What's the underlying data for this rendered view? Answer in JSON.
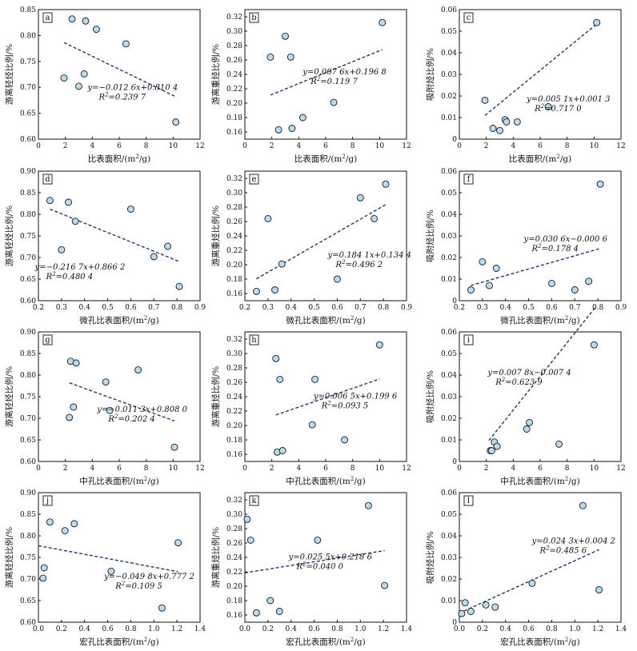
{
  "chart_data": [
    {
      "id": "a",
      "type": "scatter",
      "letter": "a",
      "xlabel": "比表面积/(m²/g)",
      "ylabel": "游离轻烃比例/%",
      "xlim": [
        0,
        12
      ],
      "ylim": [
        0.6,
        0.85
      ],
      "xticks": [
        0,
        2,
        4,
        6,
        8,
        10,
        12
      ],
      "yticks": [
        0.6,
        0.65,
        0.7,
        0.75,
        0.8,
        0.85
      ],
      "xdec": 0,
      "ydec": 2,
      "points": [
        [
          1.9,
          0.718
        ],
        [
          2.5,
          0.832
        ],
        [
          3.0,
          0.702
        ],
        [
          3.4,
          0.726
        ],
        [
          3.5,
          0.828
        ],
        [
          4.3,
          0.812
        ],
        [
          6.5,
          0.784
        ],
        [
          10.2,
          0.633
        ]
      ],
      "trend": {
        "slope": -0.0126,
        "intercept": 0.8104,
        "x0": 1.9,
        "x1": 10.2
      },
      "equation": "y=−0.012 6x+0.810 4",
      "r2": "R²=0.239 7",
      "eq_pos": [
        7.0,
        0.695
      ]
    },
    {
      "id": "b",
      "type": "scatter",
      "letter": "b",
      "xlabel": "比表面积/(m²/g)",
      "ylabel": "游离重烃比例/%",
      "xlim": [
        0,
        12
      ],
      "ylim": [
        0.15,
        0.33
      ],
      "xticks": [
        0,
        2,
        4,
        6,
        8,
        10,
        12
      ],
      "yticks": [
        0.16,
        0.18,
        0.2,
        0.22,
        0.24,
        0.26,
        0.28,
        0.3,
        0.32
      ],
      "xdec": 0,
      "ydec": 2,
      "points": [
        [
          1.9,
          0.264
        ],
        [
          2.5,
          0.163
        ],
        [
          3.0,
          0.293
        ],
        [
          3.4,
          0.264
        ],
        [
          3.5,
          0.165
        ],
        [
          4.3,
          0.18
        ],
        [
          6.6,
          0.201
        ],
        [
          10.2,
          0.312
        ]
      ],
      "trend": {
        "slope": 0.0076,
        "intercept": 0.1968,
        "x0": 1.9,
        "x1": 10.2
      },
      "equation": "y=0.007 6x+0.196 8",
      "r2": "R²=0.119 7",
      "eq_pos": [
        7.4,
        0.24
      ]
    },
    {
      "id": "c",
      "type": "scatter",
      "letter": "c",
      "xlabel": "比表面积/(m²/g)",
      "ylabel": "吸附烃比例/%",
      "xlim": [
        0,
        12
      ],
      "ylim": [
        0,
        0.06
      ],
      "xticks": [
        0,
        2,
        4,
        6,
        8,
        10,
        12
      ],
      "yticks": [
        0,
        0.01,
        0.02,
        0.03,
        0.04,
        0.05,
        0.06
      ],
      "xdec": 0,
      "ydec": 2,
      "points": [
        [
          1.9,
          0.018
        ],
        [
          2.5,
          0.005
        ],
        [
          3.0,
          0.004
        ],
        [
          3.4,
          0.009
        ],
        [
          3.5,
          0.008
        ],
        [
          4.3,
          0.008
        ],
        [
          6.6,
          0.015
        ],
        [
          10.2,
          0.054
        ]
      ],
      "trend": {
        "slope": 0.0051,
        "intercept": 0.0013,
        "x0": 1.9,
        "x1": 10.2
      },
      "equation": "y=0.005 1x+0.001 3",
      "r2": "R²=0.717 0",
      "eq_pos": [
        8.1,
        0.0175
      ]
    },
    {
      "id": "d",
      "type": "scatter",
      "letter": "d",
      "xlabel": "微孔比表面积/(m²/g)",
      "ylabel": "游离轻烃比例/%",
      "xlim": [
        0.2,
        0.9
      ],
      "ylim": [
        0.6,
        0.9
      ],
      "xticks": [
        0.2,
        0.3,
        0.4,
        0.5,
        0.6,
        0.7,
        0.8,
        0.9
      ],
      "yticks": [
        0.6,
        0.65,
        0.7,
        0.75,
        0.8,
        0.85,
        0.9
      ],
      "xdec": 1,
      "ydec": 2,
      "points": [
        [
          0.25,
          0.832
        ],
        [
          0.3,
          0.718
        ],
        [
          0.33,
          0.828
        ],
        [
          0.36,
          0.784
        ],
        [
          0.6,
          0.812
        ],
        [
          0.7,
          0.702
        ],
        [
          0.76,
          0.726
        ],
        [
          0.81,
          0.633
        ]
      ],
      "trend": {
        "slope": -0.2167,
        "intercept": 0.8662,
        "x0": 0.25,
        "x1": 0.81
      },
      "equation": "y=−0.216 7x+0.866 2",
      "r2": "R²=0.480 4",
      "eq_pos": [
        0.38,
        0.672
      ]
    },
    {
      "id": "e",
      "type": "scatter",
      "letter": "e",
      "xlabel": "微孔比表面积/(m²/g)",
      "ylabel": "游离重烃比例/%",
      "xlim": [
        0.2,
        0.9
      ],
      "ylim": [
        0.15,
        0.33
      ],
      "xticks": [
        0.2,
        0.3,
        0.4,
        0.5,
        0.6,
        0.7,
        0.8,
        0.9
      ],
      "yticks": [
        0.16,
        0.18,
        0.2,
        0.22,
        0.24,
        0.26,
        0.28,
        0.3,
        0.32
      ],
      "xdec": 1,
      "ydec": 2,
      "points": [
        [
          0.25,
          0.163
        ],
        [
          0.3,
          0.264
        ],
        [
          0.33,
          0.165
        ],
        [
          0.36,
          0.201
        ],
        [
          0.6,
          0.18
        ],
        [
          0.7,
          0.293
        ],
        [
          0.76,
          0.264
        ],
        [
          0.81,
          0.312
        ]
      ],
      "trend": {
        "slope": 0.1841,
        "intercept": 0.1344,
        "x0": 0.25,
        "x1": 0.81
      },
      "equation": "y=0.184 1x+0.134 4",
      "r2": "R²=0.496 2",
      "eq_pos": [
        0.74,
        0.21
      ]
    },
    {
      "id": "f",
      "type": "scatter",
      "letter": "f",
      "xlabel": "微孔比表面积/(m²/g)",
      "ylabel": "吸附烃比例/%",
      "xlim": [
        0.2,
        0.9
      ],
      "ylim": [
        0,
        0.06
      ],
      "xticks": [
        0.2,
        0.3,
        0.4,
        0.5,
        0.6,
        0.7,
        0.8,
        0.9
      ],
      "yticks": [
        0,
        0.01,
        0.02,
        0.03,
        0.04,
        0.05,
        0.06
      ],
      "xdec": 1,
      "ydec": 2,
      "points": [
        [
          0.25,
          0.005
        ],
        [
          0.3,
          0.018
        ],
        [
          0.33,
          0.007
        ],
        [
          0.36,
          0.015
        ],
        [
          0.6,
          0.008
        ],
        [
          0.7,
          0.005
        ],
        [
          0.76,
          0.009
        ],
        [
          0.81,
          0.054
        ]
      ],
      "trend": {
        "slope": 0.0306,
        "intercept": -0.0006,
        "x0": 0.25,
        "x1": 0.81
      },
      "equation": "y=0.030 6x−0.000 6",
      "r2": "R²=0.178 4",
      "eq_pos": [
        0.66,
        0.0275
      ]
    },
    {
      "id": "g",
      "type": "scatter",
      "letter": "g",
      "xlabel": "中孔比表面积/(m²/g)",
      "ylabel": "游离轻烃比例/%",
      "xlim": [
        0,
        12
      ],
      "ylim": [
        0.6,
        0.9
      ],
      "xticks": [
        0,
        2,
        4,
        6,
        8,
        10,
        12
      ],
      "yticks": [
        0.6,
        0.65,
        0.7,
        0.75,
        0.8,
        0.85,
        0.9
      ],
      "xdec": 0,
      "ydec": 2,
      "points": [
        [
          2.3,
          0.702
        ],
        [
          2.4,
          0.832
        ],
        [
          2.6,
          0.726
        ],
        [
          2.8,
          0.828
        ],
        [
          5.0,
          0.784
        ],
        [
          5.3,
          0.718
        ],
        [
          7.4,
          0.812
        ],
        [
          10.1,
          0.633
        ]
      ],
      "trend": {
        "slope": -0.0113,
        "intercept": 0.808,
        "x0": 2.3,
        "x1": 10.1
      },
      "equation": "y=−0.011 3x+0.808 0",
      "r2": "R²=0.202 4",
      "eq_pos": [
        7.7,
        0.715
      ]
    },
    {
      "id": "h",
      "type": "scatter",
      "letter": "h",
      "xlabel": "中孔比表面积/(m²/g)",
      "ylabel": "游离重烃比例/%",
      "xlim": [
        0,
        12
      ],
      "ylim": [
        0.15,
        0.33
      ],
      "xticks": [
        0,
        2,
        4,
        6,
        8,
        10,
        12
      ],
      "yticks": [
        0.16,
        0.18,
        0.2,
        0.22,
        0.24,
        0.26,
        0.28,
        0.3,
        0.32
      ],
      "xdec": 0,
      "ydec": 2,
      "points": [
        [
          2.3,
          0.293
        ],
        [
          2.4,
          0.163
        ],
        [
          2.6,
          0.264
        ],
        [
          2.8,
          0.165
        ],
        [
          5.0,
          0.201
        ],
        [
          5.2,
          0.264
        ],
        [
          7.4,
          0.18
        ],
        [
          10.0,
          0.312
        ]
      ],
      "trend": {
        "slope": 0.0065,
        "intercept": 0.1996,
        "x0": 2.3,
        "x1": 10.0
      },
      "equation": "y=0.006 5x+0.199 6",
      "r2": "R²=0.093 5",
      "eq_pos": [
        8.2,
        0.237
      ]
    },
    {
      "id": "i",
      "type": "scatter",
      "letter": "i",
      "xlabel": "中孔比表面积/(m²/g)",
      "ylabel": "吸附烃比例/%",
      "xlim": [
        0,
        12
      ],
      "ylim": [
        0,
        0.06
      ],
      "xticks": [
        0,
        2,
        4,
        6,
        8,
        10,
        12
      ],
      "yticks": [
        0,
        0.01,
        0.02,
        0.03,
        0.04,
        0.05,
        0.06
      ],
      "xdec": 0,
      "ydec": 2,
      "points": [
        [
          2.3,
          0.005
        ],
        [
          2.4,
          0.005
        ],
        [
          2.6,
          0.009
        ],
        [
          2.8,
          0.007
        ],
        [
          5.0,
          0.015
        ],
        [
          5.2,
          0.018
        ],
        [
          7.4,
          0.008
        ],
        [
          10.0,
          0.054
        ]
      ],
      "trend": {
        "slope": 0.0078,
        "intercept": -0.0074,
        "x0": 2.2,
        "x1": 10.1
      },
      "equation": "y=0.007 8x−0.007 4",
      "r2": "R²=0.623 9",
      "eq_pos": [
        5.2,
        0.04
      ]
    },
    {
      "id": "j",
      "type": "scatter",
      "letter": "j",
      "xlabel": "宏孔比表面积/(m²/g)",
      "ylabel": "游离轻烃比例/%",
      "xlim": [
        0,
        1.4
      ],
      "ylim": [
        0.6,
        0.9
      ],
      "xticks": [
        0,
        0.2,
        0.4,
        0.6,
        0.8,
        1.0,
        1.2,
        1.4
      ],
      "yticks": [
        0.6,
        0.65,
        0.7,
        0.75,
        0.8,
        0.85,
        0.9
      ],
      "xdec": 1,
      "ydec": 2,
      "points": [
        [
          0.04,
          0.702
        ],
        [
          0.05,
          0.726
        ],
        [
          0.1,
          0.832
        ],
        [
          0.23,
          0.812
        ],
        [
          0.31,
          0.828
        ],
        [
          0.63,
          0.718
        ],
        [
          1.07,
          0.633
        ],
        [
          1.21,
          0.784
        ]
      ],
      "trend": {
        "slope": -0.0498,
        "intercept": 0.7772,
        "x0": 0.0,
        "x1": 1.21
      },
      "equation": "y=−0.049 8x+0.777 2",
      "r2": "R²=0.109 5",
      "eq_pos": [
        0.96,
        0.7
      ]
    },
    {
      "id": "k",
      "type": "scatter",
      "letter": "k",
      "xlabel": "宏孔比表面积/(m²/g)",
      "ylabel": "游离重烃比例/%",
      "xlim": [
        0,
        1.4
      ],
      "ylim": [
        0.15,
        0.33
      ],
      "xticks": [
        0,
        0.2,
        0.4,
        0.6,
        0.8,
        1.0,
        1.2,
        1.4
      ],
      "yticks": [
        0.16,
        0.18,
        0.2,
        0.22,
        0.24,
        0.26,
        0.28,
        0.3,
        0.32
      ],
      "xdec": 1,
      "ydec": 2,
      "points": [
        [
          0.02,
          0.293
        ],
        [
          0.05,
          0.264
        ],
        [
          0.1,
          0.163
        ],
        [
          0.22,
          0.18
        ],
        [
          0.3,
          0.165
        ],
        [
          0.63,
          0.264
        ],
        [
          1.07,
          0.312
        ],
        [
          1.21,
          0.201
        ]
      ],
      "trend": {
        "slope": 0.0255,
        "intercept": 0.2186,
        "x0": 0.0,
        "x1": 1.21
      },
      "equation": "y=0.025 5x+0.218 6",
      "r2": "R²=0.040 0",
      "eq_pos": [
        0.74,
        0.237
      ]
    },
    {
      "id": "l",
      "type": "scatter",
      "letter": "l",
      "xlabel": "宏孔比表面积/(m²/g)",
      "ylabel": "吸附烃比例/%",
      "xlim": [
        0,
        1.4
      ],
      "ylim": [
        0,
        0.06
      ],
      "xticks": [
        0,
        0.2,
        0.4,
        0.6,
        0.8,
        1.0,
        1.2,
        1.4
      ],
      "yticks": [
        0,
        0.01,
        0.02,
        0.03,
        0.04,
        0.05,
        0.06
      ],
      "xdec": 1,
      "ydec": 2,
      "points": [
        [
          0.02,
          0.004
        ],
        [
          0.05,
          0.009
        ],
        [
          0.1,
          0.005
        ],
        [
          0.23,
          0.008
        ],
        [
          0.31,
          0.007
        ],
        [
          0.63,
          0.018
        ],
        [
          1.07,
          0.054
        ],
        [
          1.21,
          0.015
        ]
      ],
      "trend": {
        "slope": 0.0243,
        "intercept": 0.0042,
        "x0": 0.0,
        "x1": 1.21
      },
      "equation": "y=0.024 3x+0.004 2",
      "r2": "R²=0.485 6",
      "eq_pos": [
        0.99,
        0.0365
      ]
    }
  ],
  "colors": {
    "point_fill": "#b9dcf0",
    "point_stroke": "#1a1a1a",
    "trend": "#1f3a6e",
    "axis": "#111111"
  }
}
